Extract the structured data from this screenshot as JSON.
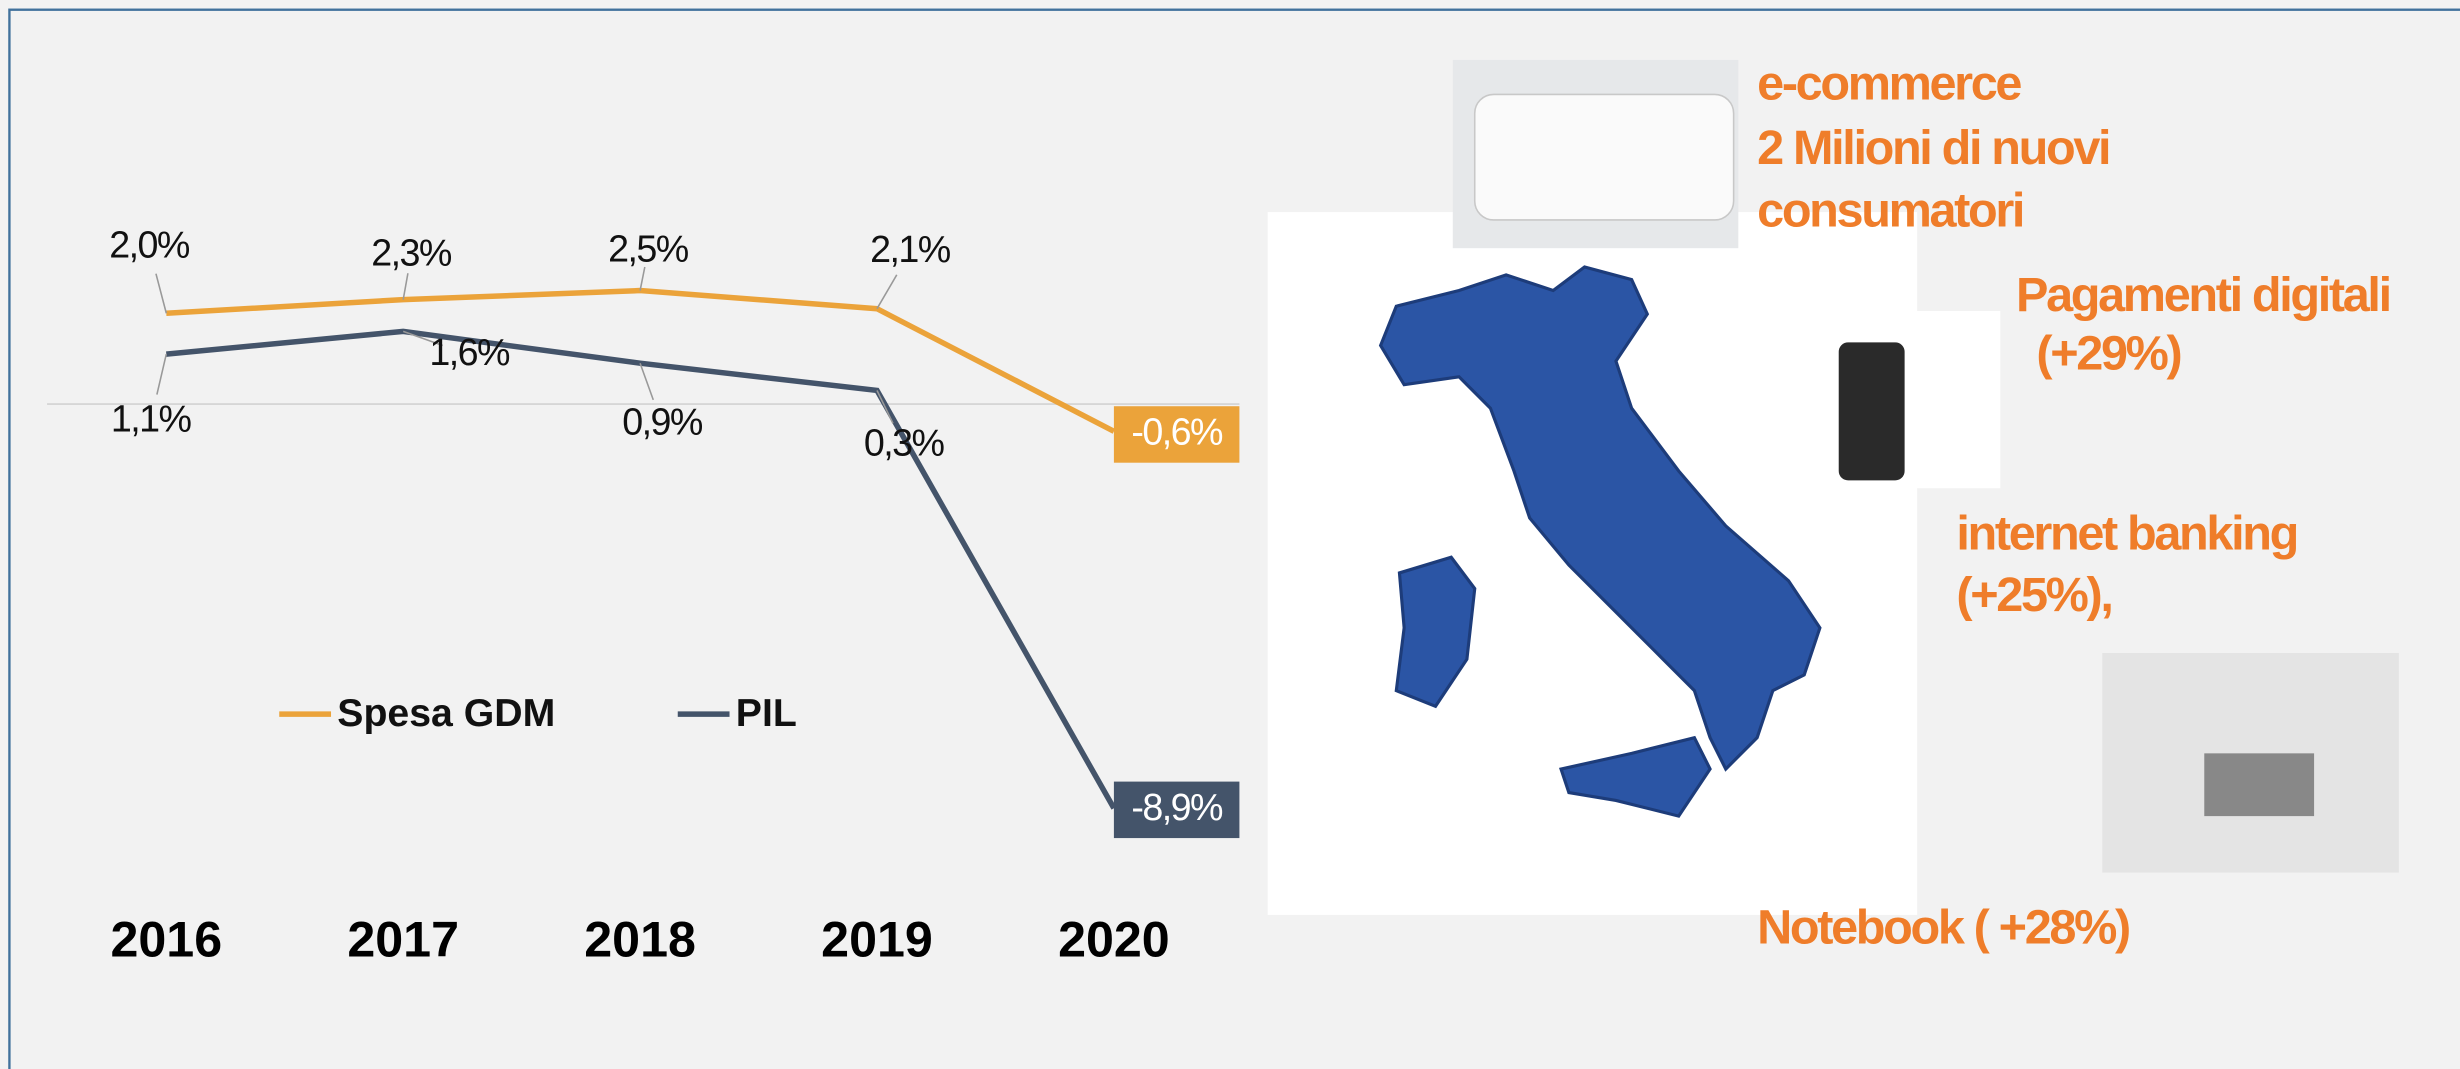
{
  "chart_data": {
    "type": "line",
    "categories": [
      "2016",
      "2017",
      "2018",
      "2019",
      "2020"
    ],
    "series": [
      {
        "name": "Spesa GDM",
        "color": "#eba33a",
        "values": [
          2.0,
          2.3,
          2.5,
          2.1,
          -0.6
        ],
        "value_labels": [
          "2,0%",
          "2,3%",
          "2,5%",
          "2,1%",
          "-0,6%"
        ]
      },
      {
        "name": "PIL",
        "color": "#44546a",
        "values": [
          1.1,
          1.6,
          0.9,
          0.3,
          -8.9
        ],
        "value_labels": [
          "1,1%",
          "1,6%",
          "0,9%",
          "0,3%",
          "-8,9%"
        ]
      }
    ]
  },
  "annotations": [
    "e-commerce",
    "2 Milioni di nuovi",
    "consumatori",
    "Pagamenti digitali",
    "(+29%)",
    "internet banking",
    "(+25%),",
    "Notebook ( +28%)"
  ]
}
